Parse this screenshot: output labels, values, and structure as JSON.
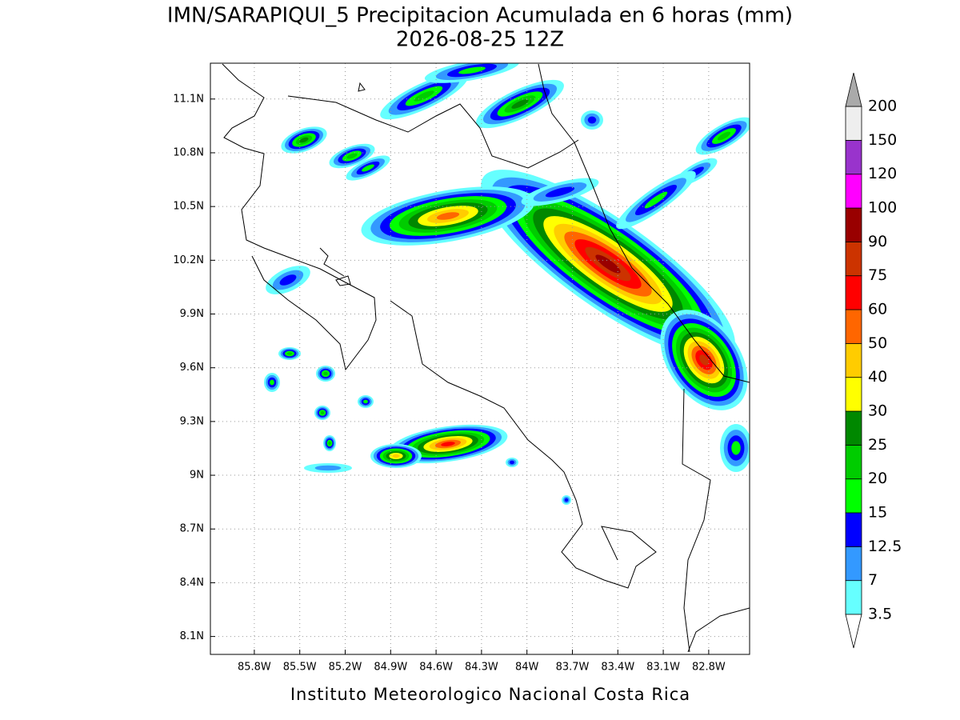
{
  "title": "IMN/SARAPIQUI_5 Precipitacion Acumulada en 6 horas (mm)",
  "subtitle": "2026-08-25 12Z",
  "footer": "Instituto Meteorologico Nacional Costa Rica",
  "map": {
    "xlim": [
      -86.09,
      -82.53
    ],
    "ylim": [
      8.0,
      11.3
    ],
    "grid": true,
    "lon_ticks": [
      {
        "value": -85.8,
        "label": "85.8W"
      },
      {
        "value": -85.5,
        "label": "85.5W"
      },
      {
        "value": -85.2,
        "label": "85.2W"
      },
      {
        "value": -84.9,
        "label": "84.9W"
      },
      {
        "value": -84.6,
        "label": "84.6W"
      },
      {
        "value": -84.3,
        "label": "84.3W"
      },
      {
        "value": -84.0,
        "label": "84W"
      },
      {
        "value": -83.7,
        "label": "83.7W"
      },
      {
        "value": -83.4,
        "label": "83.4W"
      },
      {
        "value": -83.1,
        "label": "83.1W"
      },
      {
        "value": -82.8,
        "label": "82.8W"
      }
    ],
    "lat_ticks": [
      {
        "value": 8.1,
        "label": "8.1N"
      },
      {
        "value": 8.4,
        "label": "8.4N"
      },
      {
        "value": 8.7,
        "label": "8.7N"
      },
      {
        "value": 9.0,
        "label": "9N"
      },
      {
        "value": 9.3,
        "label": "9.3N"
      },
      {
        "value": 9.6,
        "label": "9.6N"
      },
      {
        "value": 9.9,
        "label": "9.9N"
      },
      {
        "value": 10.2,
        "label": "10.2N"
      },
      {
        "value": 10.5,
        "label": "10.5N"
      },
      {
        "value": 10.8,
        "label": "10.8N"
      },
      {
        "value": 11.1,
        "label": "11.1N"
      }
    ]
  },
  "colorbar": {
    "levels": [
      3.5,
      7,
      12.5,
      15,
      20,
      25,
      30,
      40,
      50,
      60,
      75,
      90,
      100,
      120,
      150,
      200
    ],
    "colors": [
      "#66ffff",
      "#3399ff",
      "#0000ff",
      "#00ff00",
      "#00cc00",
      "#008800",
      "#ffff00",
      "#ffcc00",
      "#ff6600",
      "#ff0000",
      "#cc3300",
      "#990000",
      "#ff00ff",
      "#9933cc",
      "#eeeeee"
    ],
    "under_color": "#ffffff",
    "over_color": "#aaaaaa"
  }
}
